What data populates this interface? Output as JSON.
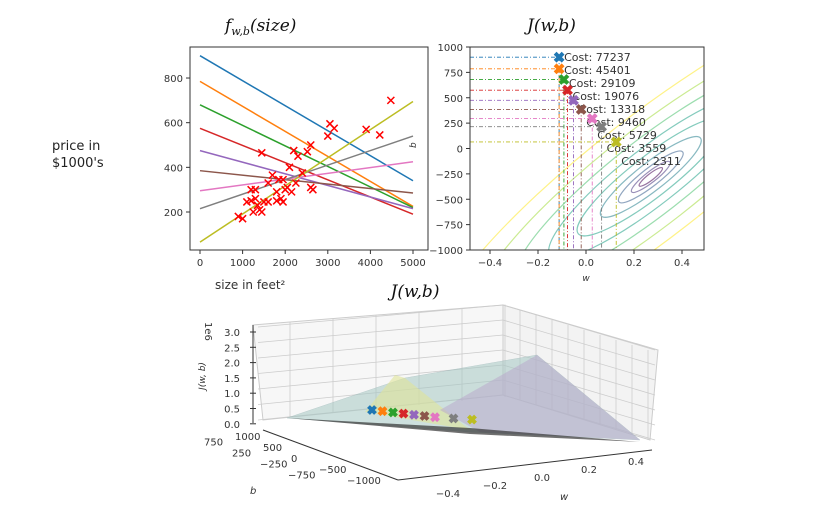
{
  "chart_data": [
    {
      "type": "line",
      "title": "f_{w,b}(size)",
      "xlabel": "size in feet²",
      "ylabel": "price in $1000's",
      "xlim": [
        -250,
        5250
      ],
      "ylim": [
        30,
        940
      ],
      "xticks": [
        "0",
        "1000",
        "2000",
        "3000",
        "4000",
        "5000"
      ],
      "yticks": [
        "200",
        "400",
        "600",
        "800"
      ],
      "lines": [
        {
          "w": -0.112,
          "b": 900,
          "color": "#1f77b4"
        },
        {
          "w": -0.112,
          "b": 785,
          "color": "#ff7f0e"
        },
        {
          "w": -0.092,
          "b": 680,
          "color": "#2ca02c"
        },
        {
          "w": -0.077,
          "b": 575,
          "color": "#d62728"
        },
        {
          "w": -0.052,
          "b": 475,
          "color": "#9467bd"
        },
        {
          "w": -0.02,
          "b": 385,
          "color": "#8c564b"
        },
        {
          "w": 0.026,
          "b": 295,
          "color": "#e377c2"
        },
        {
          "w": 0.065,
          "b": 215,
          "color": "#7f7f7f"
        },
        {
          "w": 0.126,
          "b": 65,
          "color": "#bcbd22"
        }
      ],
      "points": [
        [
          4480,
          700
        ],
        [
          3050,
          595
        ],
        [
          3150,
          575
        ],
        [
          3000,
          540
        ],
        [
          3900,
          570
        ],
        [
          4220,
          545
        ],
        [
          1450,
          465
        ],
        [
          2200,
          475
        ],
        [
          2300,
          450
        ],
        [
          2600,
          500
        ],
        [
          2520,
          470
        ],
        [
          2100,
          400
        ],
        [
          2600,
          310
        ],
        [
          2650,
          300
        ],
        [
          2400,
          375
        ],
        [
          1700,
          365
        ],
        [
          1600,
          330
        ],
        [
          1850,
          345
        ],
        [
          1950,
          345
        ],
        [
          2050,
          310
        ],
        [
          2250,
          330
        ],
        [
          2150,
          290
        ],
        [
          1200,
          300
        ],
        [
          1300,
          300
        ],
        [
          1100,
          245
        ],
        [
          1200,
          250
        ],
        [
          1300,
          260
        ],
        [
          1250,
          200
        ],
        [
          1400,
          210
        ],
        [
          1450,
          200
        ],
        [
          1500,
          245
        ],
        [
          1600,
          245
        ],
        [
          1800,
          250
        ],
        [
          1900,
          260
        ],
        [
          1950,
          245
        ],
        [
          2000,
          300
        ],
        [
          1800,
          290
        ],
        [
          900,
          180
        ],
        [
          1000,
          170
        ],
        [
          1350,
          230
        ]
      ],
      "point_color": "#ff0000"
    },
    {
      "type": "contour",
      "title": "J(w,b)",
      "xlabel": "w",
      "ylabel": "b",
      "xlim": [
        -0.5,
        0.5
      ],
      "ylim": [
        -1000,
        1000
      ],
      "xticks": [
        "-0.4",
        "-0.2",
        "0.0",
        "0.2",
        "0.4"
      ],
      "yticks": [
        "1000",
        "750",
        "500",
        "250",
        "0",
        "-250",
        "-500",
        "-750",
        "-1000"
      ],
      "path": [
        {
          "w": -0.112,
          "b": 900,
          "cost": "Cost: 77237"
        },
        {
          "w": -0.112,
          "b": 785,
          "cost": "Cost: 45401"
        },
        {
          "w": -0.092,
          "b": 680,
          "cost": "Cost: 29109"
        },
        {
          "w": -0.077,
          "b": 575,
          "cost": "Cost: 19076"
        },
        {
          "w": -0.052,
          "b": 475,
          "cost": "Cost: 13318"
        },
        {
          "w": -0.02,
          "b": 385,
          "cost": "Cost: 9460"
        },
        {
          "w": 0.026,
          "b": 295,
          "cost": "Cost: 5729"
        },
        {
          "w": 0.065,
          "b": 215,
          "cost": "Cost: 3559"
        },
        {
          "w": 0.126,
          "b": 65,
          "cost": "Cost: 2311"
        }
      ]
    },
    {
      "type": "surface3d",
      "title": "J(w,b)",
      "xlabel": "w",
      "ylabel": "b",
      "zlabel": "J(w, b)",
      "zscale": "1e6",
      "zticks": [
        "3.0",
        "2.5",
        "2.0",
        "1.5",
        "1.0",
        "0.5",
        "0.0"
      ],
      "wticks": [
        "-0.4",
        "-0.2",
        "0.0",
        "0.2",
        "0.4"
      ],
      "bticks": [
        "1000",
        "750",
        "500",
        "250",
        "0",
        "-250",
        "-500",
        "-750",
        "-1000"
      ]
    }
  ]
}
